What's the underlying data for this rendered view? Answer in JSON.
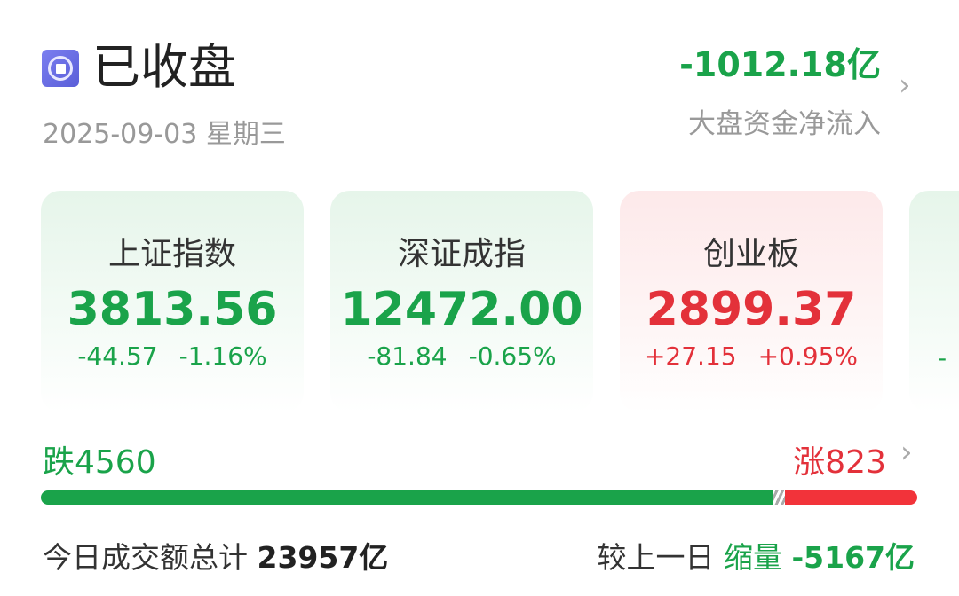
{
  "header": {
    "status": "已收盘",
    "status_icon": "stop-circle-icon",
    "date": "2025-09-03 星期三",
    "net_flow": "-1012.18亿",
    "net_flow_label": "大盘资金净流入"
  },
  "indices": [
    {
      "name": "上证指数",
      "value": "3813.56",
      "change": "-44.57",
      "pct": "-1.16%",
      "trend": "down"
    },
    {
      "name": "深证成指",
      "value": "12472.00",
      "change": "-81.84",
      "pct": "-0.65%",
      "trend": "down"
    },
    {
      "name": "创业板",
      "value": "2899.37",
      "change": "+27.15",
      "pct": "+0.95%",
      "trend": "up"
    },
    {
      "partial_change": "-"
    }
  ],
  "breadth": {
    "fall_label": "跌4560",
    "rise_label": "涨823",
    "fall": 4560,
    "rise": 823
  },
  "turnover": {
    "label": "今日成交额总计",
    "value": "23957亿",
    "compare_label": "较上一日",
    "compare_type": "缩量",
    "compare_value": "-5167亿"
  },
  "colors": {
    "up": "#e3313a",
    "down": "#1aa34a",
    "accent": "#6a6ee6"
  }
}
